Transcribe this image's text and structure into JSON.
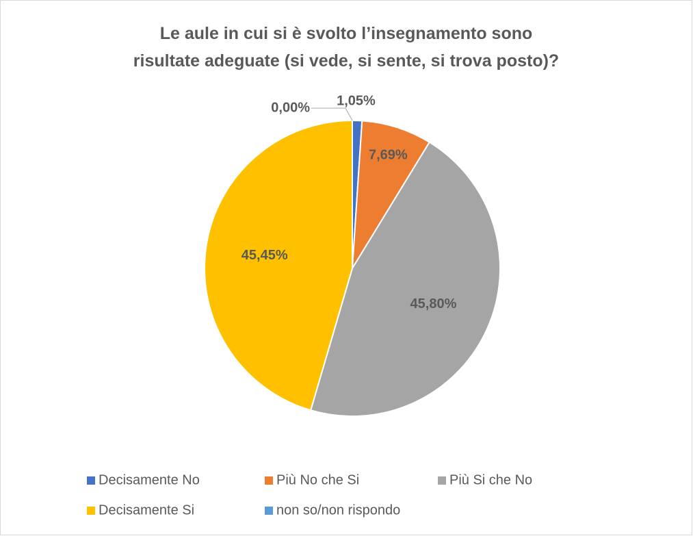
{
  "chart_data": {
    "type": "pie",
    "title": "Le aule in cui si è svolto l’insegnamento sono risultate adeguate (si vede, si sente, si trova posto)?",
    "categories": [
      "Decisamente No",
      "Più No che Si",
      "Più Si che No",
      "Decisamente Si",
      "non so/non rispondo"
    ],
    "values": [
      1.05,
      7.69,
      45.8,
      45.45,
      0.0
    ],
    "value_labels": [
      "1,05%",
      "7,69%",
      "45,80%",
      "45,45%",
      "0,00%"
    ],
    "colors": [
      "#4472c4",
      "#ed7d31",
      "#a5a5a5",
      "#ffc000",
      "#5b9bd5"
    ],
    "legend": "bottom"
  }
}
